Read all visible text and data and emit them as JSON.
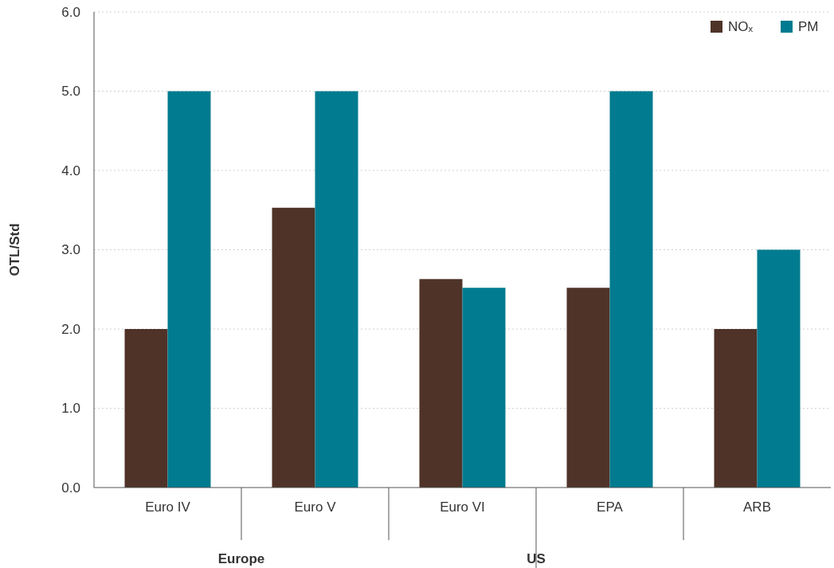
{
  "chart_data": {
    "type": "bar",
    "ylabel": "OTL/Std",
    "categories": [
      "Euro IV",
      "Euro V",
      "Euro VI",
      "EPA",
      "ARB"
    ],
    "series": [
      {
        "name": "NOₓ",
        "color": "#4f3328",
        "values": [
          2.0,
          3.53,
          2.63,
          2.52,
          2.0
        ]
      },
      {
        "name": "PM",
        "color": "#007b8f",
        "values": [
          5.0,
          5.0,
          2.52,
          5.0,
          3.0
        ]
      }
    ],
    "ylim": [
      0,
      6
    ],
    "yticks": [
      {
        "value": 0,
        "label": "0.0"
      },
      {
        "value": 1,
        "label": "1.0"
      },
      {
        "value": 2,
        "label": "2.0"
      },
      {
        "value": 3,
        "label": "3.0"
      },
      {
        "value": 4,
        "label": "4.0"
      },
      {
        "value": 5,
        "label": "5.0"
      },
      {
        "value": 6,
        "label": "6.0"
      }
    ],
    "grid": "y",
    "legend": "top right",
    "annotations": [
      "Europe",
      "US"
    ]
  }
}
